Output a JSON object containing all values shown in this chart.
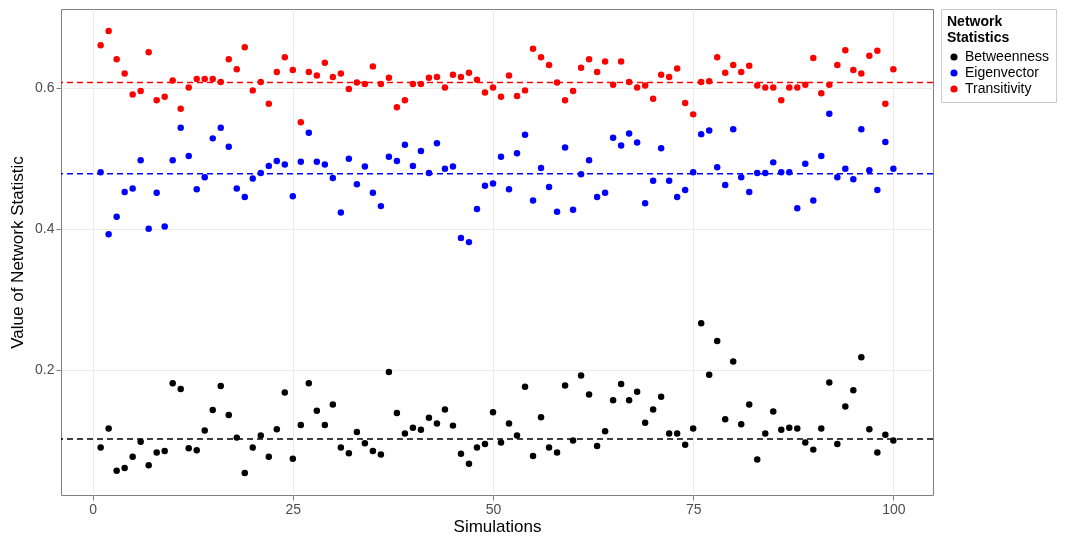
{
  "chart_data": {
    "type": "scatter",
    "xlabel": "Simulations",
    "ylabel": "Value of Network Statistic",
    "legend_title": "Network Statistics",
    "legend": "right",
    "grid": true,
    "marker": "circle",
    "x": [
      1,
      2,
      3,
      4,
      5,
      6,
      7,
      8,
      9,
      10,
      11,
      12,
      13,
      14,
      15,
      16,
      17,
      18,
      19,
      20,
      21,
      22,
      23,
      24,
      25,
      26,
      27,
      28,
      29,
      30,
      31,
      32,
      33,
      34,
      35,
      36,
      37,
      38,
      39,
      40,
      41,
      42,
      43,
      44,
      45,
      46,
      47,
      48,
      49,
      50,
      51,
      52,
      53,
      54,
      55,
      56,
      57,
      58,
      59,
      60,
      61,
      62,
      63,
      64,
      65,
      66,
      67,
      68,
      69,
      70,
      71,
      72,
      73,
      74,
      75,
      76,
      77,
      78,
      79,
      80,
      81,
      82,
      83,
      84,
      85,
      86,
      87,
      88,
      89,
      90,
      91,
      92,
      93,
      94,
      95,
      96,
      97,
      98,
      99,
      100
    ],
    "xlim": [
      -3.95,
      104.95
    ],
    "xticks": [
      0,
      25,
      50,
      75,
      100
    ],
    "ylim": [
      0.0227,
      0.7113
    ],
    "yticks": [
      0.2,
      0.4,
      0.6
    ],
    "series": [
      {
        "name": "Betweenness",
        "color": "#000000",
        "values": [
          0.09,
          0.117,
          0.057,
          0.061,
          0.077,
          0.098,
          0.065,
          0.083,
          0.085,
          0.181,
          0.173,
          0.089,
          0.086,
          0.114,
          0.143,
          0.177,
          0.136,
          0.104,
          0.054,
          0.09,
          0.107,
          0.077,
          0.116,
          0.168,
          0.074,
          0.122,
          0.181,
          0.142,
          0.122,
          0.151,
          0.09,
          0.082,
          0.112,
          0.096,
          0.085,
          0.08,
          0.197,
          0.139,
          0.11,
          0.118,
          0.115,
          0.132,
          0.124,
          0.144,
          0.121,
          0.081,
          0.067,
          0.09,
          0.095,
          0.14,
          0.097,
          0.124,
          0.107,
          0.176,
          0.078,
          0.133,
          0.09,
          0.083,
          0.178,
          0.1,
          0.192,
          0.165,
          0.092,
          0.113,
          0.157,
          0.18,
          0.157,
          0.169,
          0.125,
          0.144,
          0.162,
          0.11,
          0.11,
          0.094,
          0.117,
          0.266,
          0.193,
          0.241,
          0.13,
          0.212,
          0.123,
          0.151,
          0.073,
          0.11,
          0.141,
          0.115,
          0.118,
          0.117,
          0.097,
          0.087,
          0.117,
          0.182,
          0.095,
          0.148,
          0.171,
          0.218,
          0.116,
          0.083,
          0.108,
          0.1
        ]
      },
      {
        "name": "Eigenvector",
        "color": "#0000ff",
        "values": [
          0.48,
          0.392,
          0.417,
          0.452,
          0.457,
          0.497,
          0.4,
          0.451,
          0.403,
          0.497,
          0.543,
          0.503,
          0.456,
          0.473,
          0.528,
          0.543,
          0.516,
          0.457,
          0.445,
          0.471,
          0.479,
          0.489,
          0.496,
          0.491,
          0.446,
          0.495,
          0.536,
          0.495,
          0.491,
          0.472,
          0.423,
          0.499,
          0.463,
          0.488,
          0.451,
          0.432,
          0.502,
          0.496,
          0.519,
          0.489,
          0.51,
          0.479,
          0.521,
          0.485,
          0.488,
          0.387,
          0.381,
          0.428,
          0.461,
          0.464,
          0.502,
          0.456,
          0.507,
          0.533,
          0.44,
          0.486,
          0.459,
          0.424,
          0.515,
          0.427,
          0.477,
          0.497,
          0.445,
          0.451,
          0.529,
          0.518,
          0.535,
          0.522,
          0.436,
          0.468,
          0.514,
          0.468,
          0.445,
          0.455,
          0.48,
          0.534,
          0.539,
          0.487,
          0.462,
          0.541,
          0.473,
          0.452,
          0.479,
          0.479,
          0.494,
          0.48,
          0.48,
          0.429,
          0.492,
          0.44,
          0.503,
          0.563,
          0.473,
          0.485,
          0.47,
          0.541,
          0.483,
          0.455,
          0.523,
          0.485
        ]
      },
      {
        "name": "Transitivity",
        "color": "#ff0000",
        "values": [
          0.66,
          0.68,
          0.64,
          0.62,
          0.59,
          0.595,
          0.65,
          0.582,
          0.587,
          0.61,
          0.57,
          0.6,
          0.612,
          0.612,
          0.612,
          0.608,
          0.64,
          0.626,
          0.657,
          0.596,
          0.608,
          0.577,
          0.622,
          0.643,
          0.625,
          0.551,
          0.622,
          0.617,
          0.635,
          0.615,
          0.62,
          0.598,
          0.607,
          0.605,
          0.63,
          0.605,
          0.614,
          0.572,
          0.582,
          0.605,
          0.605,
          0.614,
          0.615,
          0.6,
          0.618,
          0.615,
          0.621,
          0.611,
          0.593,
          0.6,
          0.587,
          0.617,
          0.588,
          0.596,
          0.655,
          0.643,
          0.632,
          0.607,
          0.582,
          0.595,
          0.628,
          0.64,
          0.622,
          0.637,
          0.604,
          0.637,
          0.608,
          0.6,
          0.603,
          0.584,
          0.618,
          0.615,
          0.627,
          0.578,
          0.562,
          0.608,
          0.609,
          0.643,
          0.621,
          0.632,
          0.622,
          0.631,
          0.603,
          0.6,
          0.6,
          0.582,
          0.6,
          0.6,
          0.604,
          0.642,
          0.592,
          0.604,
          0.632,
          0.653,
          0.625,
          0.62,
          0.645,
          0.652,
          0.577,
          0.626
        ]
      }
    ],
    "ref_lines": [
      {
        "axis": "y",
        "value": 0.607,
        "color": "#ff0000",
        "line_style": "dashed"
      },
      {
        "axis": "y",
        "value": 0.478,
        "color": "#0000ff",
        "line_style": "dashed"
      },
      {
        "axis": "y",
        "value": 0.102,
        "color": "#000000",
        "line_style": "dashed"
      }
    ]
  }
}
